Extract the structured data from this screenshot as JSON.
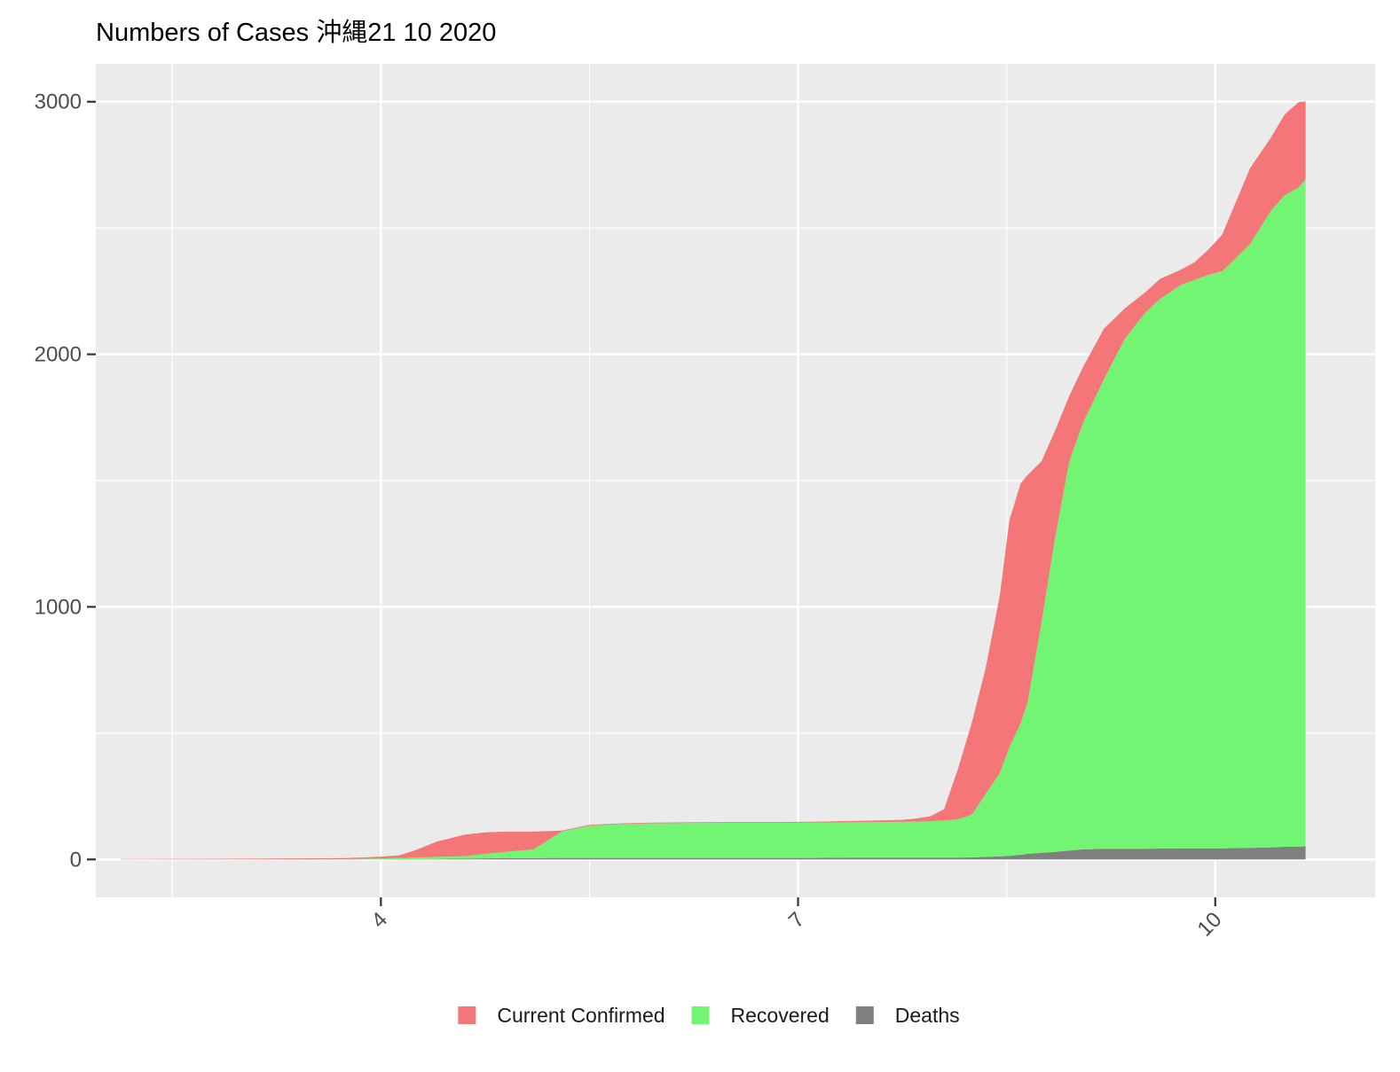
{
  "chart_data": {
    "type": "area",
    "stacked": true,
    "title": "Numbers of Cases  沖縄21 10 2020",
    "xlabel": "",
    "ylabel": "",
    "x_unit": "month (2020)",
    "xlim": [
      1.95,
      11.15
    ],
    "ylim": [
      -150,
      3150
    ],
    "x_ticks": [
      4,
      7,
      10
    ],
    "x_tick_labels": [
      "4",
      "7",
      "10"
    ],
    "y_ticks": [
      0,
      1000,
      2000,
      3000
    ],
    "y_tick_labels": [
      "0",
      "1000",
      "2000",
      "3000"
    ],
    "grid": true,
    "legend_position": "bottom",
    "colors": {
      "Deaths": "#7f7f7f",
      "Recovered": "#73f574",
      "Current Confirmed": "#f47678"
    },
    "legend": [
      "Current Confirmed",
      "Recovered",
      "Deaths"
    ],
    "x": [
      2.13,
      3.05,
      3.33,
      3.75,
      3.83,
      3.92,
      4.0,
      4.13,
      4.25,
      4.4,
      4.6,
      4.75,
      4.9,
      5.1,
      5.3,
      5.5,
      5.75,
      5.95,
      6.2,
      6.5,
      6.85,
      7.1,
      7.35,
      7.55,
      7.75,
      7.85,
      7.95,
      8.05,
      8.15,
      8.25,
      8.35,
      8.45,
      8.52,
      8.6,
      8.65,
      8.75,
      8.85,
      8.95,
      9.05,
      9.2,
      9.35,
      9.5,
      9.6,
      9.75,
      9.85,
      9.95,
      10.05,
      10.25,
      10.4,
      10.5,
      10.6,
      10.65
    ],
    "series": [
      {
        "name": "Deaths",
        "values": [
          0,
          0,
          0,
          0,
          0,
          0,
          0,
          1,
          1,
          2,
          3,
          4,
          5,
          5,
          6,
          6,
          6,
          6,
          6,
          6,
          6,
          6,
          7,
          7,
          7,
          7,
          7,
          7,
          7,
          8,
          10,
          12,
          14,
          18,
          22,
          26,
          30,
          35,
          40,
          42,
          42,
          42,
          43,
          44,
          44,
          44,
          44,
          46,
          48,
          50,
          51,
          52
        ]
      },
      {
        "name": "Recovered",
        "values": [
          0,
          0,
          0,
          1,
          2,
          3,
          4,
          5,
          6,
          8,
          10,
          18,
          25,
          35,
          105,
          128,
          134,
          137,
          138,
          139,
          139,
          140,
          140,
          141,
          142,
          143,
          144,
          147,
          152,
          170,
          250,
          330,
          430,
          520,
          600,
          910,
          1250,
          1540,
          1690,
          1860,
          2020,
          2125,
          2175,
          2230,
          2250,
          2270,
          2285,
          2390,
          2520,
          2580,
          2610,
          2640
        ]
      },
      {
        "name": "Current Confirmed",
        "values": [
          2,
          3,
          4,
          4,
          5,
          6,
          7,
          10,
          30,
          60,
          85,
          85,
          80,
          70,
          3,
          3,
          3,
          3,
          3,
          3,
          3,
          3,
          5,
          6,
          8,
          12,
          20,
          45,
          200,
          365,
          500,
          700,
          900,
          950,
          900,
          640,
          420,
          260,
          220,
          200,
          120,
          80,
          80,
          60,
          70,
          100,
          145,
          300,
          290,
          320,
          337,
          310
        ]
      }
    ]
  }
}
